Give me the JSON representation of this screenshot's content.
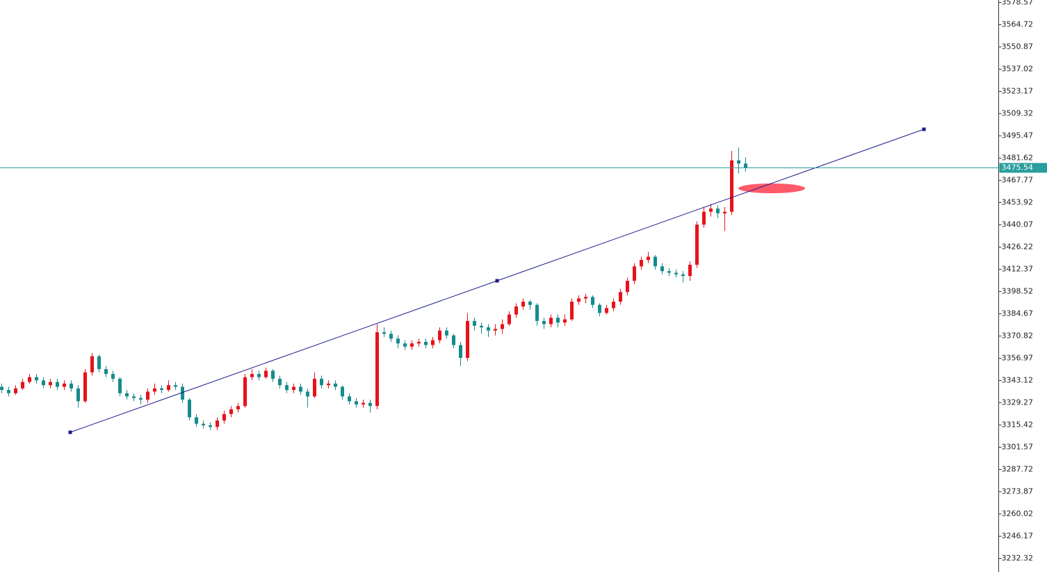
{
  "chart_data": {
    "type": "candlestick",
    "up_color": "#e8121b",
    "down_color": "#168b8b",
    "open": [
      3339,
      3337,
      3335,
      3338,
      3342,
      3345,
      3343,
      3340,
      3342,
      3339,
      3341,
      3338,
      3330,
      3348,
      3358,
      3350,
      3347,
      3344,
      3335,
      3333,
      3332,
      3331,
      3336,
      3338,
      3337,
      3340,
      3339,
      3331,
      3320,
      3316,
      3315,
      3314,
      3318,
      3322,
      3325,
      3327,
      3345,
      3347,
      3345,
      3349,
      3344,
      3340,
      3337,
      3339,
      3336,
      3333,
      3344,
      3340,
      3341,
      3339,
      3333,
      3330,
      3328,
      3329,
      3327,
      3373,
      3372,
      3369,
      3366,
      3364,
      3366,
      3367,
      3365,
      3368,
      3374,
      3371,
      3365,
      3357,
      3380,
      3377,
      3376,
      3374,
      3375,
      3378,
      3384,
      3389,
      3392,
      3390,
      3380,
      3378,
      3382,
      3379,
      3381,
      3392,
      3394,
      3395,
      3390,
      3385,
      3388,
      3392,
      3398,
      3405,
      3414,
      3418,
      3420,
      3414,
      3411,
      3410,
      3409,
      3408,
      3415,
      3440,
      3448,
      3450,
      3447,
      3448,
      3480,
      3478
    ],
    "high": [
      3341,
      3339,
      3340,
      3344,
      3347,
      3347,
      3345,
      3344,
      3344,
      3343,
      3343,
      3340,
      3350,
      3360,
      3359,
      3352,
      3349,
      3345,
      3337,
      3335,
      3334,
      3338,
      3341,
      3340,
      3343,
      3342,
      3341,
      3332,
      3322,
      3318,
      3317,
      3320,
      3324,
      3327,
      3329,
      3347,
      3350,
      3349,
      3351,
      3350,
      3346,
      3342,
      3341,
      3341,
      3338,
      3348,
      3346,
      3343,
      3343,
      3340,
      3335,
      3332,
      3331,
      3331,
      3378,
      3376,
      3374,
      3371,
      3368,
      3368,
      3369,
      3369,
      3370,
      3376,
      3376,
      3372,
      3367,
      3385,
      3382,
      3379,
      3378,
      3378,
      3381,
      3386,
      3391,
      3394,
      3393,
      3391,
      3382,
      3384,
      3384,
      3384,
      3394,
      3396,
      3397,
      3396,
      3391,
      3390,
      3394,
      3400,
      3407,
      3416,
      3420,
      3423,
      3421,
      3416,
      3413,
      3412,
      3411,
      3417,
      3442,
      3451,
      3453,
      3452,
      3451,
      3486,
      3488,
      3482
    ],
    "low": [
      3335,
      3333,
      3334,
      3337,
      3341,
      3341,
      3338,
      3338,
      3337,
      3337,
      3336,
      3326,
      3329,
      3346,
      3348,
      3345,
      3342,
      3333,
      3331,
      3330,
      3328,
      3329,
      3334,
      3335,
      3336,
      3337,
      3329,
      3318,
      3314,
      3313,
      3312,
      3312,
      3316,
      3320,
      3323,
      3326,
      3343,
      3343,
      3344,
      3342,
      3338,
      3335,
      3335,
      3334,
      3326,
      3332,
      3338,
      3338,
      3337,
      3331,
      3328,
      3326,
      3326,
      3323,
      3325,
      3370,
      3367,
      3363,
      3362,
      3362,
      3364,
      3363,
      3363,
      3366,
      3369,
      3363,
      3352,
      3355,
      3374,
      3372,
      3370,
      3371,
      3372,
      3377,
      3382,
      3387,
      3387,
      3377,
      3375,
      3376,
      3376,
      3377,
      3380,
      3390,
      3391,
      3388,
      3383,
      3384,
      3386,
      3390,
      3396,
      3403,
      3412,
      3416,
      3412,
      3409,
      3408,
      3407,
      3404,
      3405,
      3413,
      3438,
      3445,
      3444,
      3436,
      3446,
      3472,
      3473
    ],
    "close": [
      3337,
      3335,
      3338,
      3342,
      3345,
      3343,
      3340,
      3342,
      3339,
      3341,
      3338,
      3330,
      3348,
      3358,
      3350,
      3347,
      3344,
      3335,
      3333,
      3332,
      3331,
      3336,
      3338,
      3337,
      3340,
      3339,
      3331,
      3320,
      3316,
      3315,
      3314,
      3318,
      3322,
      3325,
      3327,
      3345,
      3347,
      3345,
      3349,
      3344,
      3340,
      3337,
      3339,
      3336,
      3333,
      3344,
      3340,
      3341,
      3339,
      3333,
      3330,
      3328,
      3329,
      3327,
      3373,
      3372,
      3369,
      3366,
      3364,
      3366,
      3367,
      3365,
      3368,
      3374,
      3371,
      3365,
      3357,
      3380,
      3377,
      3376,
      3374,
      3375,
      3378,
      3384,
      3389,
      3392,
      3390,
      3380,
      3378,
      3382,
      3379,
      3381,
      3392,
      3394,
      3395,
      3390,
      3385,
      3388,
      3392,
      3398,
      3405,
      3414,
      3418,
      3420,
      3414,
      3411,
      3410,
      3409,
      3408,
      3415,
      3440,
      3448,
      3450,
      3447,
      3448,
      3480,
      3478,
      3475.54
    ],
    "current_price": 3475.54,
    "current_price_color": "#2a9d9d",
    "trendline": {
      "color": "#1a1a8c",
      "x": [
        9.9,
        71.3,
        132.7
      ],
      "y": [
        3310.66,
        3405.01,
        3499.37
      ]
    },
    "ylim": [
      3223.66,
      3579.87
    ],
    "yticks": [
      3232.32,
      3246.17,
      3260.02,
      3273.87,
      3287.72,
      3301.57,
      3315.42,
      3329.27,
      3343.12,
      3356.97,
      3370.82,
      3384.67,
      3398.52,
      3412.37,
      3426.22,
      3440.07,
      3453.92,
      3467.77,
      3481.62,
      3495.47,
      3509.32,
      3523.17,
      3537.02,
      3550.87,
      3564.72,
      3578.57
    ]
  }
}
